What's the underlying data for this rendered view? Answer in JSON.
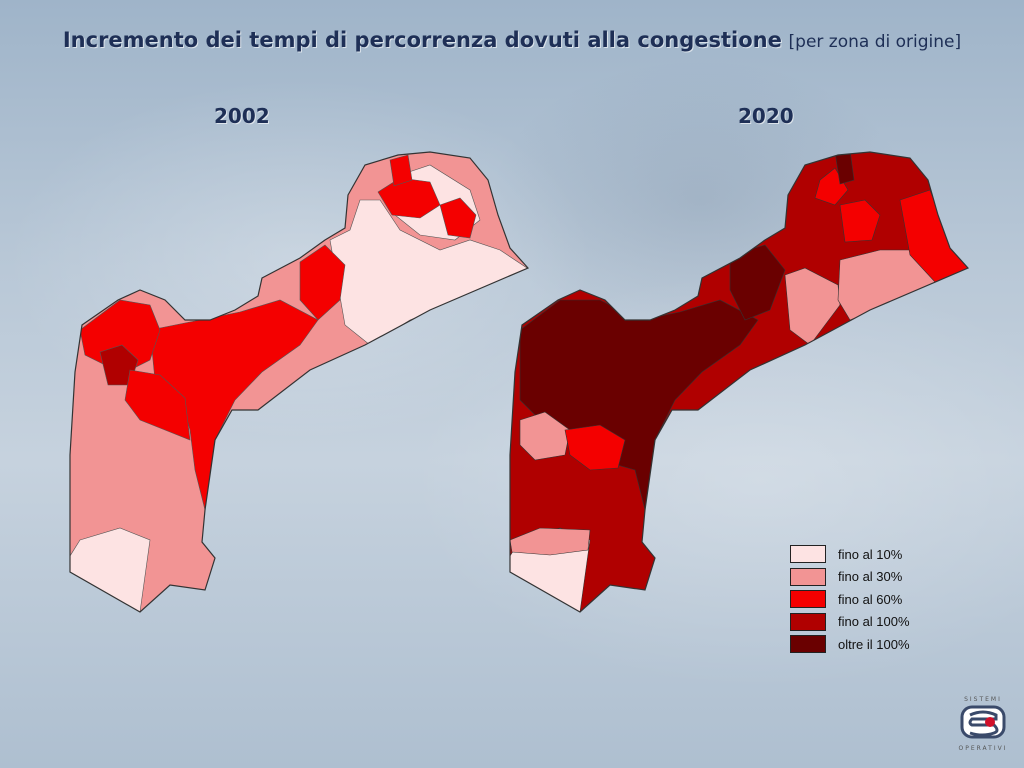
{
  "title": {
    "main": "Incremento dei tempi di percorrenza dovuti alla congestione",
    "sub": "[per zona di origine]"
  },
  "maps": [
    {
      "year": "2002"
    },
    {
      "year": "2020"
    }
  ],
  "legend": {
    "items": [
      {
        "label": "fino al 10%",
        "color": "#fde3e3"
      },
      {
        "label": "fino al 30%",
        "color": "#f29494"
      },
      {
        "label": "fino al 60%",
        "color": "#f40000"
      },
      {
        "label": "fino al 100%",
        "color": "#b00000"
      },
      {
        "label": "oltre il 100%",
        "color": "#6a0000"
      }
    ]
  },
  "logo": {
    "top_text": "SISTEMI",
    "bottom_text": "OPERATIVI"
  }
}
